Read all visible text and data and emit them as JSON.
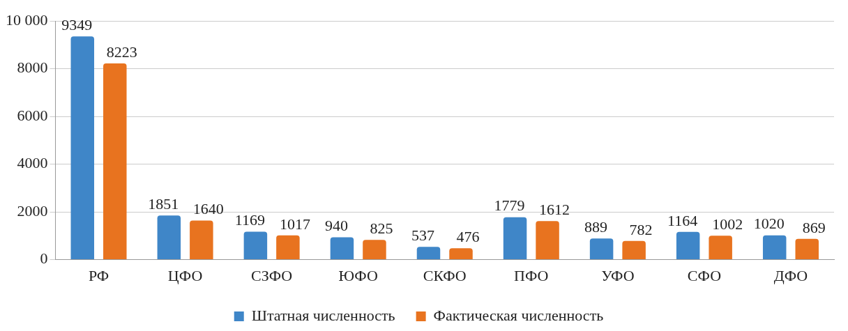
{
  "chart_data": {
    "type": "bar",
    "categories": [
      "РФ",
      "ЦФО",
      "СЗФО",
      "ЮФО",
      "СКФО",
      "ПФО",
      "УФО",
      "СФО",
      "ДФО"
    ],
    "series": [
      {
        "name": "Штатная численность",
        "color": "#3f86c8",
        "values": [
          9349,
          1851,
          1169,
          940,
          537,
          1779,
          889,
          1164,
          1020
        ]
      },
      {
        "name": "Фактическая численность",
        "color": "#e8731f",
        "values": [
          8223,
          1640,
          1017,
          825,
          476,
          1612,
          782,
          1002,
          869
        ]
      }
    ],
    "ylim": [
      0,
      10000
    ],
    "yticks": [
      0,
      2000,
      4000,
      6000,
      8000,
      {
        "value": 10000,
        "label": "10 000"
      }
    ],
    "grid": "y",
    "legend": "bottom",
    "data_labels": true
  }
}
